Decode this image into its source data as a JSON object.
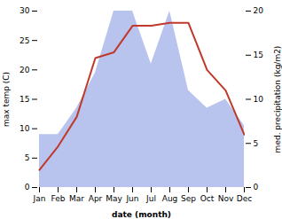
{
  "chart_data": {
    "type": "line",
    "categories": [
      "Jan",
      "Feb",
      "Mar",
      "Apr",
      "May",
      "Jun",
      "Jul",
      "Aug",
      "Sep",
      "Oct",
      "Nov",
      "Dec"
    ],
    "series": [
      {
        "type": "area",
        "axis": "y2",
        "color": "#b8c4ee",
        "values": [
          6,
          6,
          9,
          13,
          20,
          20,
          14,
          20,
          11,
          9,
          10,
          7
        ]
      },
      {
        "type": "line",
        "color": "#c0392b",
        "values": [
          3,
          7,
          12,
          22,
          23,
          27.5,
          27.5,
          28,
          28,
          20,
          16.5,
          9
        ]
      }
    ],
    "xlabel": "date (month)",
    "ylabel": "max temp (C)",
    "y2label": "med. precipitation (kg/m2)",
    "ylim": [
      0,
      30
    ],
    "yticks": [
      0,
      5,
      10,
      15,
      20,
      25,
      30
    ],
    "y2lim": [
      0,
      20
    ],
    "y2ticks": [
      0,
      5,
      10,
      15,
      20
    ],
    "grid": false
  }
}
